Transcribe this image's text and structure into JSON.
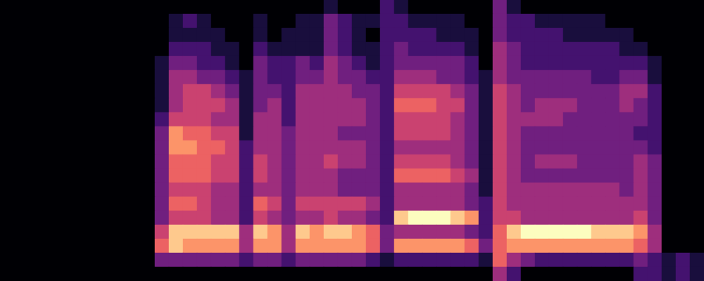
{
  "chart_data": {
    "type": "heatmap",
    "tick_labels": false,
    "grid": false,
    "cells": [
      [
        0,
        0,
        0,
        0,
        0,
        0,
        0,
        0,
        0,
        0,
        0,
        0,
        0,
        0,
        0,
        0,
        0,
        0,
        0,
        0,
        0,
        0,
        0,
        1,
        0,
        0,
        0,
        2,
        1,
        0,
        0,
        0,
        0,
        0,
        0,
        3,
        1,
        0,
        0,
        0,
        0,
        0,
        0,
        0,
        0,
        0,
        0,
        0,
        0,
        0
      ],
      [
        0,
        0,
        0,
        0,
        0,
        0,
        0,
        0,
        0,
        0,
        0,
        0,
        1,
        2,
        1,
        0,
        0,
        0,
        1,
        0,
        0,
        1,
        1,
        3,
        2,
        1,
        1,
        2,
        2,
        1,
        1,
        1,
        1,
        0,
        0,
        3,
        2,
        2,
        1,
        1,
        1,
        1,
        1,
        0,
        0,
        0,
        0,
        0,
        0,
        0
      ],
      [
        0,
        0,
        0,
        0,
        0,
        0,
        0,
        0,
        0,
        0,
        0,
        0,
        1,
        1,
        1,
        1,
        0,
        0,
        1,
        0,
        1,
        1,
        1,
        3,
        2,
        1,
        0,
        2,
        2,
        2,
        2,
        1,
        1,
        1,
        0,
        3,
        2,
        2,
        2,
        2,
        1,
        1,
        1,
        1,
        1,
        0,
        0,
        0,
        0,
        0
      ],
      [
        0,
        0,
        0,
        0,
        0,
        0,
        0,
        0,
        0,
        0,
        0,
        0,
        2,
        2,
        2,
        1,
        1,
        0,
        2,
        1,
        1,
        1,
        1,
        3,
        2,
        1,
        1,
        2,
        3,
        2,
        2,
        2,
        2,
        1,
        0,
        4,
        3,
        2,
        2,
        2,
        2,
        2,
        2,
        2,
        1,
        1,
        0,
        0,
        0,
        0
      ],
      [
        0,
        0,
        0,
        0,
        0,
        0,
        0,
        0,
        0,
        0,
        0,
        1,
        3,
        3,
        2,
        2,
        1,
        0,
        3,
        2,
        2,
        3,
        2,
        4,
        3,
        2,
        1,
        2,
        3,
        3,
        3,
        3,
        3,
        2,
        0,
        4,
        3,
        2,
        2,
        2,
        2,
        2,
        2,
        2,
        2,
        2,
        1,
        0,
        0,
        0
      ],
      [
        0,
        0,
        0,
        0,
        0,
        0,
        0,
        0,
        0,
        0,
        0,
        1,
        4,
        4,
        3,
        3,
        2,
        1,
        3,
        2,
        2,
        3,
        3,
        4,
        3,
        3,
        2,
        2,
        4,
        4,
        4,
        3,
        3,
        2,
        1,
        4,
        3,
        3,
        3,
        3,
        3,
        3,
        2,
        2,
        3,
        3,
        1,
        0,
        0,
        0
      ],
      [
        0,
        0,
        0,
        0,
        0,
        0,
        0,
        0,
        0,
        0,
        0,
        1,
        4,
        5,
        5,
        4,
        3,
        1,
        3,
        3,
        2,
        4,
        4,
        4,
        4,
        3,
        3,
        2,
        5,
        5,
        5,
        5,
        4,
        3,
        1,
        5,
        4,
        3,
        3,
        3,
        3,
        3,
        3,
        3,
        4,
        4,
        2,
        0,
        0,
        0
      ],
      [
        0,
        0,
        0,
        0,
        0,
        0,
        0,
        0,
        0,
        0,
        0,
        1,
        4,
        5,
        5,
        5,
        4,
        1,
        3,
        4,
        2,
        4,
        4,
        4,
        4,
        4,
        3,
        2,
        6,
        6,
        6,
        5,
        5,
        3,
        1,
        5,
        4,
        3,
        4,
        4,
        4,
        3,
        3,
        3,
        4,
        3,
        2,
        0,
        0,
        0
      ],
      [
        0,
        0,
        0,
        0,
        0,
        0,
        0,
        0,
        0,
        0,
        0,
        2,
        5,
        5,
        5,
        4,
        4,
        1,
        4,
        4,
        2,
        4,
        4,
        4,
        4,
        4,
        3,
        2,
        5,
        5,
        5,
        5,
        4,
        3,
        1,
        5,
        4,
        4,
        4,
        4,
        3,
        3,
        3,
        3,
        3,
        3,
        2,
        0,
        0,
        0
      ],
      [
        0,
        0,
        0,
        0,
        0,
        0,
        0,
        0,
        0,
        0,
        0,
        3,
        7,
        6,
        6,
        5,
        5,
        1,
        4,
        4,
        3,
        4,
        4,
        4,
        3,
        3,
        3,
        2,
        5,
        5,
        5,
        5,
        4,
        3,
        1,
        5,
        4,
        3,
        3,
        3,
        3,
        3,
        3,
        3,
        3,
        2,
        2,
        0,
        0,
        0
      ],
      [
        0,
        0,
        0,
        0,
        0,
        0,
        0,
        0,
        0,
        0,
        0,
        3,
        7,
        7,
        6,
        6,
        5,
        2,
        4,
        4,
        3,
        4,
        4,
        4,
        4,
        4,
        3,
        2,
        4,
        4,
        4,
        4,
        4,
        3,
        1,
        5,
        4,
        3,
        3,
        3,
        3,
        3,
        3,
        3,
        3,
        3,
        2,
        0,
        0,
        0
      ],
      [
        0,
        0,
        0,
        0,
        0,
        0,
        0,
        0,
        0,
        0,
        0,
        3,
        6,
        6,
        6,
        5,
        5,
        2,
        5,
        4,
        3,
        4,
        4,
        5,
        4,
        4,
        3,
        2,
        5,
        5,
        5,
        5,
        4,
        3,
        1,
        5,
        4,
        3,
        4,
        4,
        4,
        3,
        3,
        3,
        3,
        4,
        3,
        0,
        0,
        0
      ],
      [
        0,
        0,
        0,
        0,
        0,
        0,
        0,
        0,
        0,
        0,
        0,
        3,
        6,
        6,
        6,
        5,
        5,
        2,
        5,
        4,
        3,
        4,
        4,
        4,
        3,
        3,
        3,
        2,
        6,
        6,
        6,
        6,
        5,
        4,
        1,
        5,
        4,
        3,
        3,
        3,
        3,
        3,
        3,
        3,
        3,
        4,
        3,
        0,
        0,
        0
      ],
      [
        0,
        0,
        0,
        0,
        0,
        0,
        0,
        0,
        0,
        0,
        0,
        3,
        5,
        5,
        5,
        4,
        4,
        2,
        4,
        4,
        3,
        4,
        4,
        4,
        3,
        3,
        3,
        2,
        4,
        4,
        4,
        4,
        4,
        3,
        1,
        5,
        4,
        4,
        4,
        4,
        4,
        4,
        4,
        4,
        3,
        4,
        3,
        0,
        0,
        0
      ],
      [
        0,
        0,
        0,
        0,
        0,
        0,
        0,
        0,
        0,
        0,
        0,
        3,
        6,
        6,
        5,
        4,
        4,
        2,
        6,
        5,
        3,
        5,
        5,
        5,
        5,
        5,
        4,
        2,
        4,
        4,
        4,
        4,
        4,
        3,
        2,
        5,
        4,
        4,
        4,
        4,
        4,
        4,
        4,
        4,
        4,
        4,
        3,
        0,
        0,
        0
      ],
      [
        0,
        0,
        0,
        0,
        0,
        0,
        0,
        0,
        0,
        0,
        0,
        3,
        5,
        5,
        5,
        4,
        4,
        2,
        5,
        4,
        3,
        4,
        4,
        5,
        4,
        4,
        3,
        2,
        8,
        9,
        9,
        9,
        8,
        7,
        2,
        5,
        5,
        4,
        4,
        4,
        4,
        4,
        4,
        4,
        4,
        5,
        3,
        0,
        0,
        0
      ],
      [
        0,
        0,
        0,
        0,
        0,
        0,
        0,
        0,
        0,
        0,
        0,
        5,
        8,
        8,
        8,
        8,
        8,
        4,
        8,
        7,
        4,
        8,
        7,
        8,
        8,
        7,
        6,
        3,
        4,
        4,
        4,
        4,
        4,
        3,
        2,
        6,
        8,
        9,
        9,
        9,
        9,
        9,
        8,
        8,
        8,
        7,
        4,
        0,
        0,
        0
      ],
      [
        0,
        0,
        0,
        0,
        0,
        0,
        0,
        0,
        0,
        0,
        0,
        6,
        8,
        7,
        7,
        7,
        7,
        4,
        7,
        7,
        4,
        7,
        7,
        7,
        7,
        7,
        6,
        3,
        7,
        7,
        7,
        7,
        7,
        6,
        3,
        6,
        7,
        7,
        7,
        7,
        7,
        7,
        7,
        7,
        7,
        6,
        4,
        0,
        0,
        0
      ],
      [
        0,
        0,
        0,
        0,
        0,
        0,
        0,
        0,
        0,
        0,
        0,
        3,
        3,
        3,
        3,
        3,
        3,
        2,
        3,
        3,
        2,
        3,
        3,
        3,
        3,
        3,
        2,
        1,
        2,
        2,
        2,
        2,
        2,
        2,
        1,
        6,
        4,
        3,
        2,
        2,
        2,
        2,
        2,
        2,
        2,
        3,
        2,
        1,
        2,
        1
      ],
      [
        0,
        0,
        0,
        0,
        0,
        0,
        0,
        0,
        0,
        0,
        0,
        0,
        0,
        0,
        0,
        0,
        0,
        0,
        0,
        0,
        0,
        0,
        0,
        0,
        0,
        0,
        0,
        0,
        0,
        0,
        0,
        0,
        0,
        0,
        0,
        4,
        2,
        0,
        0,
        0,
        0,
        0,
        0,
        0,
        0,
        2,
        2,
        1,
        2,
        1
      ]
    ]
  }
}
